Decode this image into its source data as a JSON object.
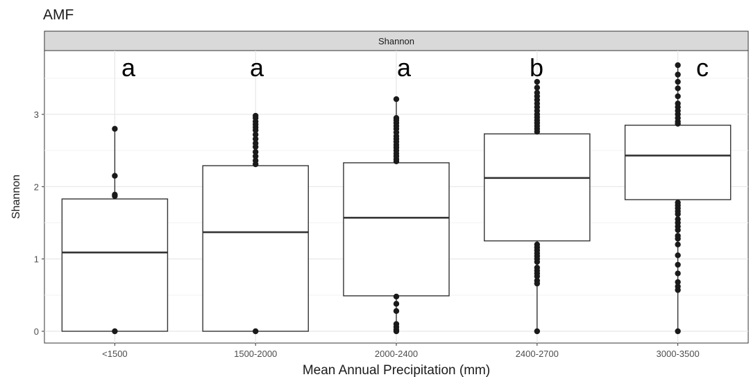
{
  "chart_data": {
    "type": "box",
    "title": "AMF",
    "facet_label": "Shannon",
    "xlabel": "Mean Annual Precipitation (mm)",
    "ylabel": "Shannon",
    "ylim": [
      -0.1,
      3.85
    ],
    "yticks": [
      0,
      1,
      2,
      3
    ],
    "grid": true,
    "categories": [
      "<1500",
      "1500-2000",
      "2000-2400",
      "2400-2700",
      "3000-3500"
    ],
    "letters": [
      "a",
      "a",
      "a",
      "b",
      "c"
    ],
    "boxes": [
      {
        "category": "<1500",
        "q1": 0.0,
        "median": 1.09,
        "q3": 1.83,
        "whisker_low": 0.0,
        "whisker_high": 2.8,
        "outliers": [
          2.8,
          2.15,
          1.89,
          1.87,
          0.0
        ]
      },
      {
        "category": "1500-2000",
        "q1": 0.0,
        "median": 1.37,
        "q3": 2.29,
        "whisker_low": 0.0,
        "whisker_high": 2.98,
        "outliers": [
          2.98,
          2.95,
          2.9,
          2.86,
          2.82,
          2.78,
          2.72,
          2.66,
          2.6,
          2.55,
          2.48,
          2.42,
          2.36,
          2.31,
          0.0
        ]
      },
      {
        "category": "2000-2400",
        "q1": 0.49,
        "median": 1.57,
        "q3": 2.33,
        "whisker_low": 0.0,
        "whisker_high": 3.21,
        "outliers": [
          3.21,
          2.95,
          2.92,
          2.88,
          2.84,
          2.8,
          2.75,
          2.7,
          2.66,
          2.62,
          2.58,
          2.54,
          2.5,
          2.46,
          2.42,
          2.38,
          2.35,
          0.48,
          0.38,
          0.28,
          0.1,
          0.06,
          0.02,
          0.0
        ]
      },
      {
        "category": "2400-2700",
        "q1": 1.25,
        "median": 2.12,
        "q3": 2.73,
        "whisker_low": 0.0,
        "whisker_high": 3.45,
        "outliers": [
          3.45,
          3.37,
          3.3,
          3.25,
          3.2,
          3.15,
          3.1,
          3.05,
          3.0,
          2.96,
          2.92,
          2.88,
          2.84,
          2.8,
          2.76,
          1.2,
          1.16,
          1.12,
          1.08,
          1.04,
          1.0,
          0.96,
          0.88,
          0.84,
          0.8,
          0.76,
          0.7,
          0.66,
          0.0
        ]
      },
      {
        "category": "3000-3500",
        "q1": 1.82,
        "median": 2.43,
        "q3": 2.85,
        "whisker_low": 0.0,
        "whisker_high": 3.68,
        "outliers": [
          3.68,
          3.55,
          3.45,
          3.36,
          3.25,
          3.15,
          3.1,
          3.05,
          3.0,
          2.95,
          2.9,
          2.87,
          1.78,
          1.74,
          1.7,
          1.66,
          1.62,
          1.55,
          1.5,
          1.45,
          1.4,
          1.32,
          1.28,
          1.2,
          1.05,
          0.92,
          0.8,
          0.68,
          0.62,
          0.57,
          0.0
        ]
      }
    ]
  }
}
